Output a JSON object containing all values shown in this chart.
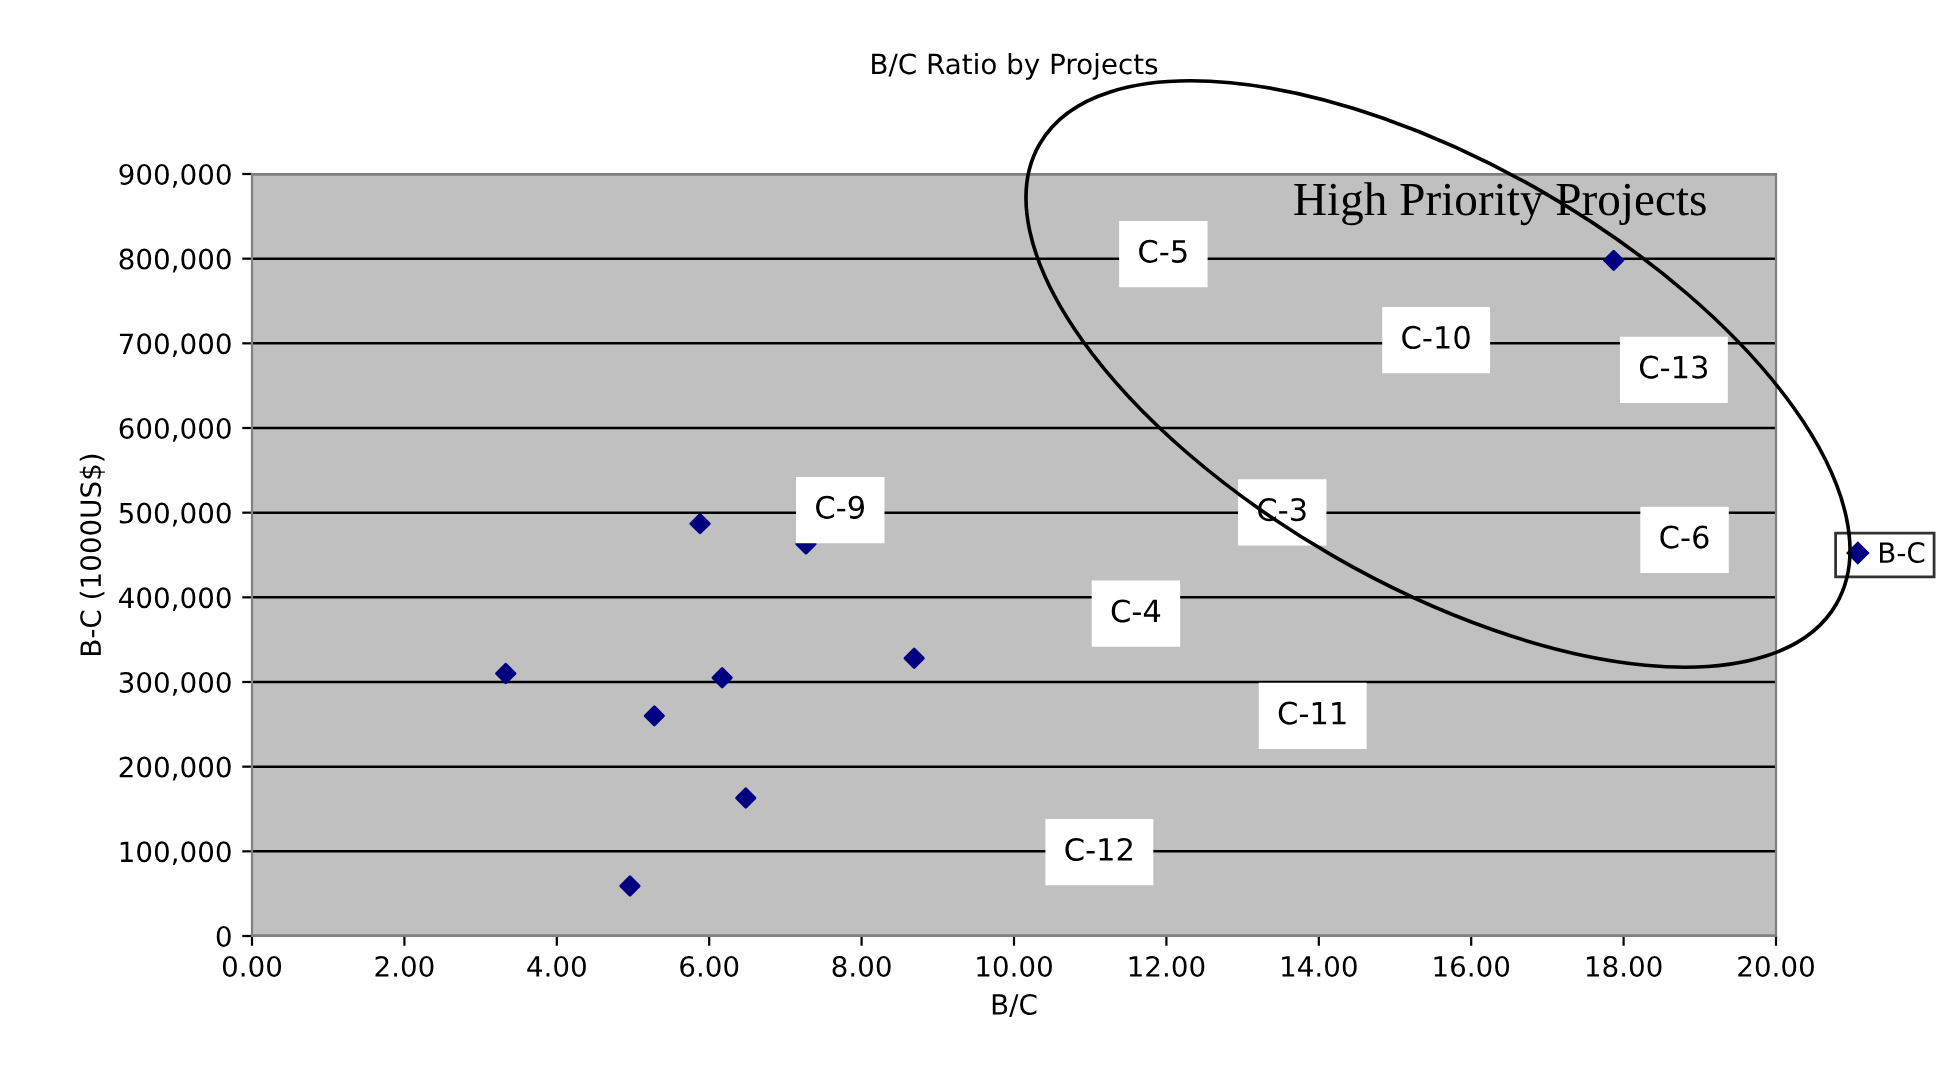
{
  "chart_data": {
    "type": "scatter",
    "title": "B/C Ratio by Projects",
    "xlabel": "B/C",
    "ylabel": "B-C (1000US$)",
    "x": [
      3.33,
      4.96,
      5.28,
      5.88,
      6.17,
      6.48,
      7.27,
      8.69,
      17.87
    ],
    "series": [
      {
        "name": "B-C",
        "color": "#000080",
        "values": [
          310000,
          59000,
          260000,
          487000,
          305000,
          163000,
          463000,
          328000,
          798000
        ]
      }
    ],
    "marker": "diamond",
    "grid": "y",
    "legend": "right",
    "xlim": [
      0,
      20
    ],
    "ylim": [
      0,
      900000
    ],
    "xticks": [
      {
        "value": 0,
        "label": "0.00"
      },
      {
        "value": 2,
        "label": "2.00"
      },
      {
        "value": 4,
        "label": "4.00"
      },
      {
        "value": 6,
        "label": "6.00"
      },
      {
        "value": 8,
        "label": "8.00"
      },
      {
        "value": 10,
        "label": "10.00"
      },
      {
        "value": 12,
        "label": "12.00"
      },
      {
        "value": 14,
        "label": "14.00"
      },
      {
        "value": 16,
        "label": "16.00"
      },
      {
        "value": 18,
        "label": "18.00"
      },
      {
        "value": 20,
        "label": "20.00"
      }
    ],
    "yticks": [
      0,
      {
        "value": 100000,
        "label": "100,000"
      },
      {
        "value": 200000,
        "label": "200,000"
      },
      {
        "value": 300000,
        "label": "300,000"
      },
      {
        "value": 400000,
        "label": "400,000"
      },
      {
        "value": 500000,
        "label": "500,000"
      },
      {
        "value": 600000,
        "label": "600,000"
      },
      {
        "value": 700000,
        "label": "700,000"
      },
      {
        "value": 800000,
        "label": "800,000"
      },
      {
        "value": 900000,
        "label": "900,000"
      }
    ],
    "annotations": [
      "High Priority Projects",
      "C-5",
      "C-10",
      "C-13",
      "C-9",
      "C-3",
      "C-6",
      "C-4",
      "C-11",
      "C-12"
    ]
  }
}
